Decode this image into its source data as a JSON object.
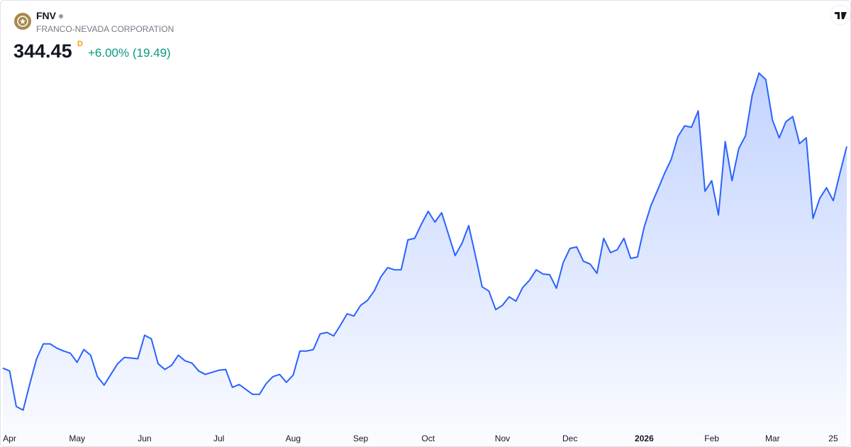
{
  "chart_data": {
    "type": "area",
    "symbol": "FNV",
    "title": "FRANCO-NEVADA CORPORATION",
    "price": "344.45",
    "interval": "D",
    "change": "+6.00% (19.49)",
    "color": "#2962ff",
    "categories": [
      null,
      "Apr",
      null,
      null,
      null,
      null,
      null,
      null,
      null,
      null,
      null,
      "May",
      null,
      null,
      null,
      null,
      null,
      null,
      null,
      null,
      null,
      "Jun",
      null,
      null,
      null,
      null,
      null,
      null,
      null,
      null,
      null,
      null,
      "Jul",
      null,
      null,
      null,
      null,
      null,
      null,
      null,
      null,
      null,
      null,
      "Aug",
      null,
      null,
      null,
      null,
      null,
      null,
      null,
      null,
      null,
      "Sep",
      null,
      null,
      null,
      null,
      null,
      null,
      null,
      null,
      null,
      "Oct",
      null,
      null,
      null,
      null,
      null,
      null,
      null,
      null,
      null,
      null,
      "Nov",
      null,
      null,
      null,
      null,
      null,
      null,
      null,
      null,
      null,
      "Dec",
      null,
      null,
      null,
      null,
      null,
      null,
      null,
      null,
      null,
      null,
      "2026",
      null,
      null,
      null,
      null,
      null,
      null,
      null,
      null,
      null,
      "Feb",
      null,
      null,
      null,
      null,
      null,
      null,
      null,
      null,
      "Mar",
      null,
      null,
      null,
      null,
      null,
      null,
      null,
      null,
      "25",
      null,
      null
    ],
    "values": [
      181.0,
      178.9,
      152.6,
      150.0,
      169.5,
      187.9,
      198.9,
      198.9,
      195.7,
      193.6,
      192.0,
      185.2,
      194.7,
      190.5,
      174.7,
      168.4,
      176.3,
      184.2,
      188.9,
      188.4,
      187.9,
      205.2,
      202.6,
      184.2,
      180.0,
      183.1,
      190.5,
      186.3,
      184.7,
      178.9,
      176.3,
      177.9,
      179.4,
      180.0,
      166.8,
      168.9,
      165.3,
      161.6,
      161.6,
      169.5,
      174.7,
      176.3,
      170.5,
      175.8,
      193.6,
      193.6,
      194.7,
      206.2,
      207.3,
      204.7,
      212.6,
      221.0,
      219.4,
      227.3,
      230.9,
      237.8,
      248.3,
      255.1,
      253.5,
      253.5,
      275.6,
      276.7,
      287.2,
      296.6,
      288.7,
      295.6,
      279.8,
      264.0,
      273.0,
      286.1,
      264.0,
      240.9,
      237.8,
      224.1,
      227.3,
      233.6,
      230.4,
      240.4,
      245.7,
      253.5,
      250.4,
      249.9,
      239.9,
      258.8,
      269.3,
      270.4,
      259.8,
      257.7,
      250.9,
      276.7,
      266.2,
      268.3,
      276.7,
      261.9,
      263.0,
      285.1,
      300.9,
      312.4,
      324.5,
      335.0,
      351.8,
      359.7,
      358.6,
      370.7,
      311.4,
      319.2,
      294.0,
      348.1,
      319.2,
      342.9,
      352.3,
      382.3,
      398.6,
      393.9,
      363.9,
      350.8,
      362.8,
      366.5,
      346.6,
      350.8,
      291.4,
      306.1,
      314.0,
      304.5,
      325.0,
      344.45
    ]
  }
}
